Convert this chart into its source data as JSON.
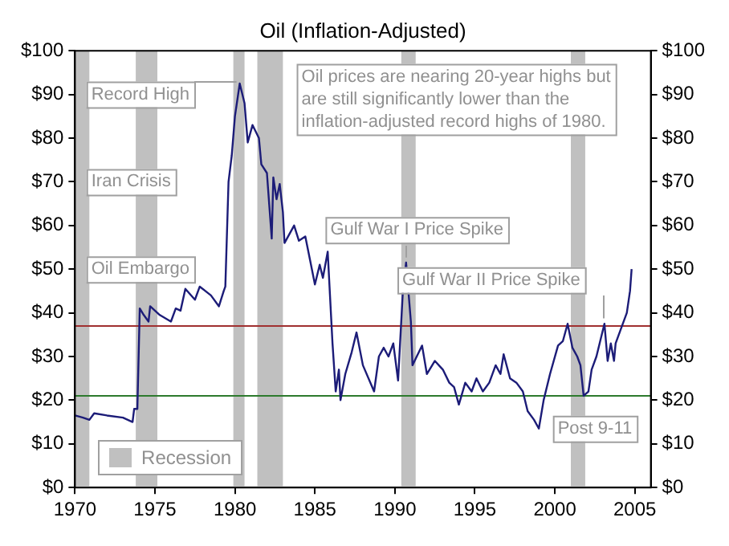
{
  "chart_data": {
    "type": "line",
    "title": "Oil (Inflation-Adjusted)",
    "series": [
      {
        "color": "#1c1c78",
        "x": [
          1970.0,
          1970.5,
          1970.9,
          1971.2,
          1972,
          1973,
          1973.6,
          1973.7,
          1973.9,
          1974.05,
          1974.3,
          1974.6,
          1974.7,
          1975.3,
          1976.0,
          1976.3,
          1976.6,
          1976.9,
          1977.5,
          1977.8,
          1978.5,
          1979.0,
          1979.3,
          1979.4,
          1979.6,
          1979.8,
          1980.0,
          1980.3,
          1980.6,
          1980.8,
          1981.1,
          1981.5,
          1981.65,
          1982.0,
          1982.2,
          1982.3,
          1982.4,
          1982.6,
          1982.8,
          1983.0,
          1983.1,
          1983.7,
          1984.0,
          1984.4,
          1984.7,
          1985.0,
          1985.3,
          1985.5,
          1985.8,
          1986.1,
          1986.3,
          1986.5,
          1986.6,
          1986.9,
          1987.3,
          1987.6,
          1988.0,
          1988.7,
          1989.0,
          1989.3,
          1989.6,
          1989.9,
          1990.2,
          1990.5,
          1990.7,
          1991.0,
          1991.1,
          1991.5,
          1991.7,
          1992.0,
          1992.5,
          1993.0,
          1993.4,
          1993.7,
          1994.0,
          1994.4,
          1994.8,
          1995.1,
          1995.5,
          1995.9,
          1996.3,
          1996.6,
          1996.8,
          1997.2,
          1997.6,
          1998.0,
          1998.3,
          1998.7,
          1999.0,
          1999.3,
          1999.7,
          2000.2,
          2000.5,
          2000.8,
          2001.1,
          2001.4,
          2001.6,
          2001.8,
          2002.1,
          2002.3,
          2002.6,
          2002.8,
          2003.1,
          2003.3,
          2003.5,
          2003.7,
          2003.8,
          2004.2,
          2004.5,
          2004.7,
          2004.8
        ],
        "values": [
          16.5,
          16,
          15.5,
          17,
          16.5,
          16,
          15,
          18,
          18,
          41,
          39.5,
          38,
          41.5,
          39.5,
          38,
          41,
          40.5,
          45.5,
          43,
          46,
          44,
          41.5,
          45,
          46,
          70,
          76,
          85,
          92.5,
          88,
          79,
          83,
          80,
          74,
          72,
          62,
          57,
          71,
          66,
          69.5,
          63,
          56,
          60,
          56.5,
          57.5,
          52,
          46.5,
          51,
          48,
          54,
          33,
          22,
          27,
          20,
          26,
          31,
          35.5,
          28,
          22,
          30,
          32,
          30,
          33,
          24.5,
          45,
          51.5,
          38,
          28,
          31,
          32.5,
          26,
          29,
          27,
          24,
          23,
          19,
          24,
          22,
          25,
          22,
          24,
          28,
          26,
          30.5,
          25,
          24,
          22,
          17.5,
          15.5,
          13.5,
          20,
          26,
          32.5,
          33.5,
          37.5,
          32,
          30,
          28,
          21,
          22,
          27,
          30,
          33,
          37.5,
          29,
          33,
          29,
          33,
          37,
          40,
          45,
          50
        ]
      }
    ],
    "xlim": [
      1970,
      2006
    ],
    "xticks": [
      1970,
      1975,
      1980,
      1985,
      1990,
      1995,
      2000,
      2005
    ],
    "ylim": [
      0,
      100
    ],
    "yticks": [
      {
        "value": 0,
        "label": "$0"
      },
      {
        "value": 10,
        "label": "$10"
      },
      {
        "value": 20,
        "label": "$20"
      },
      {
        "value": 30,
        "label": "$30"
      },
      {
        "value": 40,
        "label": "$40"
      },
      {
        "value": 50,
        "label": "$50"
      },
      {
        "value": 60,
        "label": "$60"
      },
      {
        "value": 70,
        "label": "$70"
      },
      {
        "value": 80,
        "label": "$80"
      },
      {
        "value": 90,
        "label": "$90"
      },
      {
        "value": 100,
        "label": "$100"
      }
    ],
    "y2lim": [
      0,
      100
    ],
    "y2ticks": [
      {
        "value": 0,
        "label": "$0"
      },
      {
        "value": 10,
        "label": "$10"
      },
      {
        "value": 20,
        "label": "$20"
      },
      {
        "value": 30,
        "label": "$30"
      },
      {
        "value": 40,
        "label": "$40"
      },
      {
        "value": 50,
        "label": "$50"
      },
      {
        "value": 60,
        "label": "$60"
      },
      {
        "value": 70,
        "label": "$70"
      },
      {
        "value": 80,
        "label": "$80"
      },
      {
        "value": 90,
        "label": "$90"
      },
      {
        "value": 100,
        "label": "$100"
      }
    ],
    "ref_lines": [
      {
        "axis": "y",
        "value": 37,
        "color": "#a03030"
      },
      {
        "axis": "y",
        "value": 21,
        "color": "#2d7a2d"
      }
    ],
    "bands": [
      {
        "axis": "x",
        "from": 1970,
        "to": 1970.9,
        "label": "Recession",
        "color": "#c0c0c0"
      },
      {
        "axis": "x",
        "from": 1973.8,
        "to": 1975.15,
        "color": "#c0c0c0"
      },
      {
        "axis": "x",
        "from": 1979.9,
        "to": 1980.6,
        "color": "#c0c0c0"
      },
      {
        "axis": "x",
        "from": 1981.4,
        "to": 1983.0,
        "color": "#c0c0c0"
      },
      {
        "axis": "x",
        "from": 1990.4,
        "to": 1991.3,
        "color": "#c0c0c0"
      },
      {
        "axis": "x",
        "from": 2001.0,
        "to": 2001.9,
        "color": "#c0c0c0"
      }
    ],
    "annotations": [
      "Oil prices are nearing 20-year highs but are still significantly lower than the inflation-adjusted record highs of 1980.",
      {
        "text": "Record High",
        "x": 1980.3,
        "y": 92.5
      },
      "Iran Crisis",
      "Oil Embargo",
      {
        "text": "Gulf War I Price Spike",
        "x": 1990.7,
        "y": 51.5
      },
      {
        "text": "Gulf War II Price Spike",
        "x": 2003.1,
        "y": 37.5
      },
      "Post 9-11"
    ],
    "legend": "bottom left",
    "grid": false,
    "marker": "none",
    "line_style": "solid"
  }
}
